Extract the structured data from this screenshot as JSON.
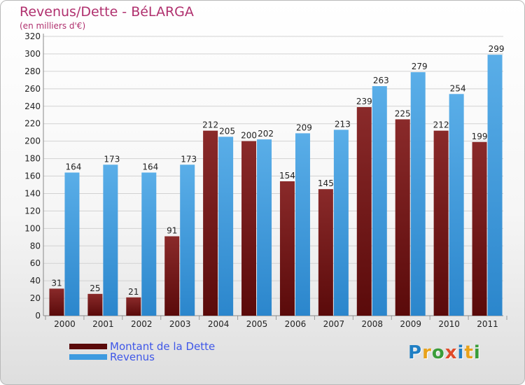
{
  "title": "Revenus/Dette - BéLARGA",
  "subtitle": "(en milliers d'€)",
  "logo": {
    "text": "Proxiti",
    "colors": [
      "#1f7fc4",
      "#e8a21b",
      "#3a9d3a",
      "#e04b2a",
      "#1f7fc4",
      "#e8a21b",
      "#3a9d3a"
    ]
  },
  "colors": {
    "dette": "#7a1c1c",
    "revenus": "#3e9be0",
    "title": "#b0306e",
    "legend_text": "#3f57e8"
  },
  "chart_data": {
    "type": "bar",
    "title": "Revenus/Dette - BéLARGA",
    "ylabel": "(en milliers d'€)",
    "xlabel": "",
    "categories": [
      "2000",
      "2001",
      "2002",
      "2003",
      "2004",
      "2005",
      "2006",
      "2007",
      "2008",
      "2009",
      "2010",
      "2011"
    ],
    "series": [
      {
        "name": "Montant de la Dette",
        "values": [
          31,
          25,
          21,
          91,
          212,
          200,
          154,
          145,
          239,
          225,
          212,
          199
        ]
      },
      {
        "name": "Revenus",
        "values": [
          164,
          173,
          164,
          173,
          205,
          202,
          209,
          213,
          263,
          279,
          254,
          299
        ]
      }
    ],
    "ylim": [
      0,
      320
    ],
    "yticks": [
      0,
      20,
      40,
      60,
      80,
      100,
      120,
      140,
      160,
      180,
      200,
      220,
      240,
      260,
      280,
      300,
      320
    ],
    "grid": true,
    "legend": "bottom-left"
  }
}
